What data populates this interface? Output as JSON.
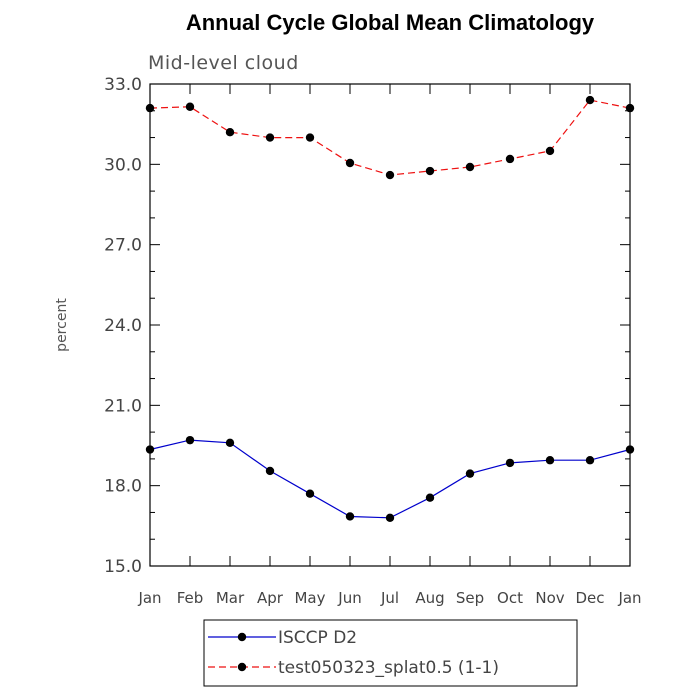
{
  "chart_data": {
    "type": "line",
    "title": "Annual Cycle Global Mean Climatology",
    "subtitle": "Mid-level cloud",
    "xlabel": "",
    "ylabel": "percent",
    "categories": [
      "Jan",
      "Feb",
      "Mar",
      "Apr",
      "May",
      "Jun",
      "Jul",
      "Aug",
      "Sep",
      "Oct",
      "Nov",
      "Dec",
      "Jan"
    ],
    "ylim": [
      15.0,
      33.0
    ],
    "yticks": [
      "15.0",
      "18.0",
      "21.0",
      "24.0",
      "27.0",
      "30.0",
      "33.0"
    ],
    "ytick_values": [
      15,
      18,
      21,
      24,
      27,
      30,
      33
    ],
    "grid": false,
    "legend_position": "bottom",
    "series": [
      {
        "name": "ISCCP D2",
        "color": "#0000cc",
        "dash": "solid",
        "marker": "circle",
        "values": [
          19.35,
          19.7,
          19.6,
          18.55,
          17.7,
          16.85,
          16.8,
          17.55,
          18.45,
          18.85,
          18.95,
          18.95,
          19.35
        ]
      },
      {
        "name": "test050323_splat0.5 (1-1)",
        "color": "#ee1111",
        "dash": "dashed",
        "marker": "circle",
        "values": [
          32.1,
          32.15,
          31.2,
          31.0,
          31.0,
          30.05,
          29.6,
          29.75,
          29.9,
          30.2,
          30.5,
          32.4,
          32.1
        ]
      }
    ]
  }
}
